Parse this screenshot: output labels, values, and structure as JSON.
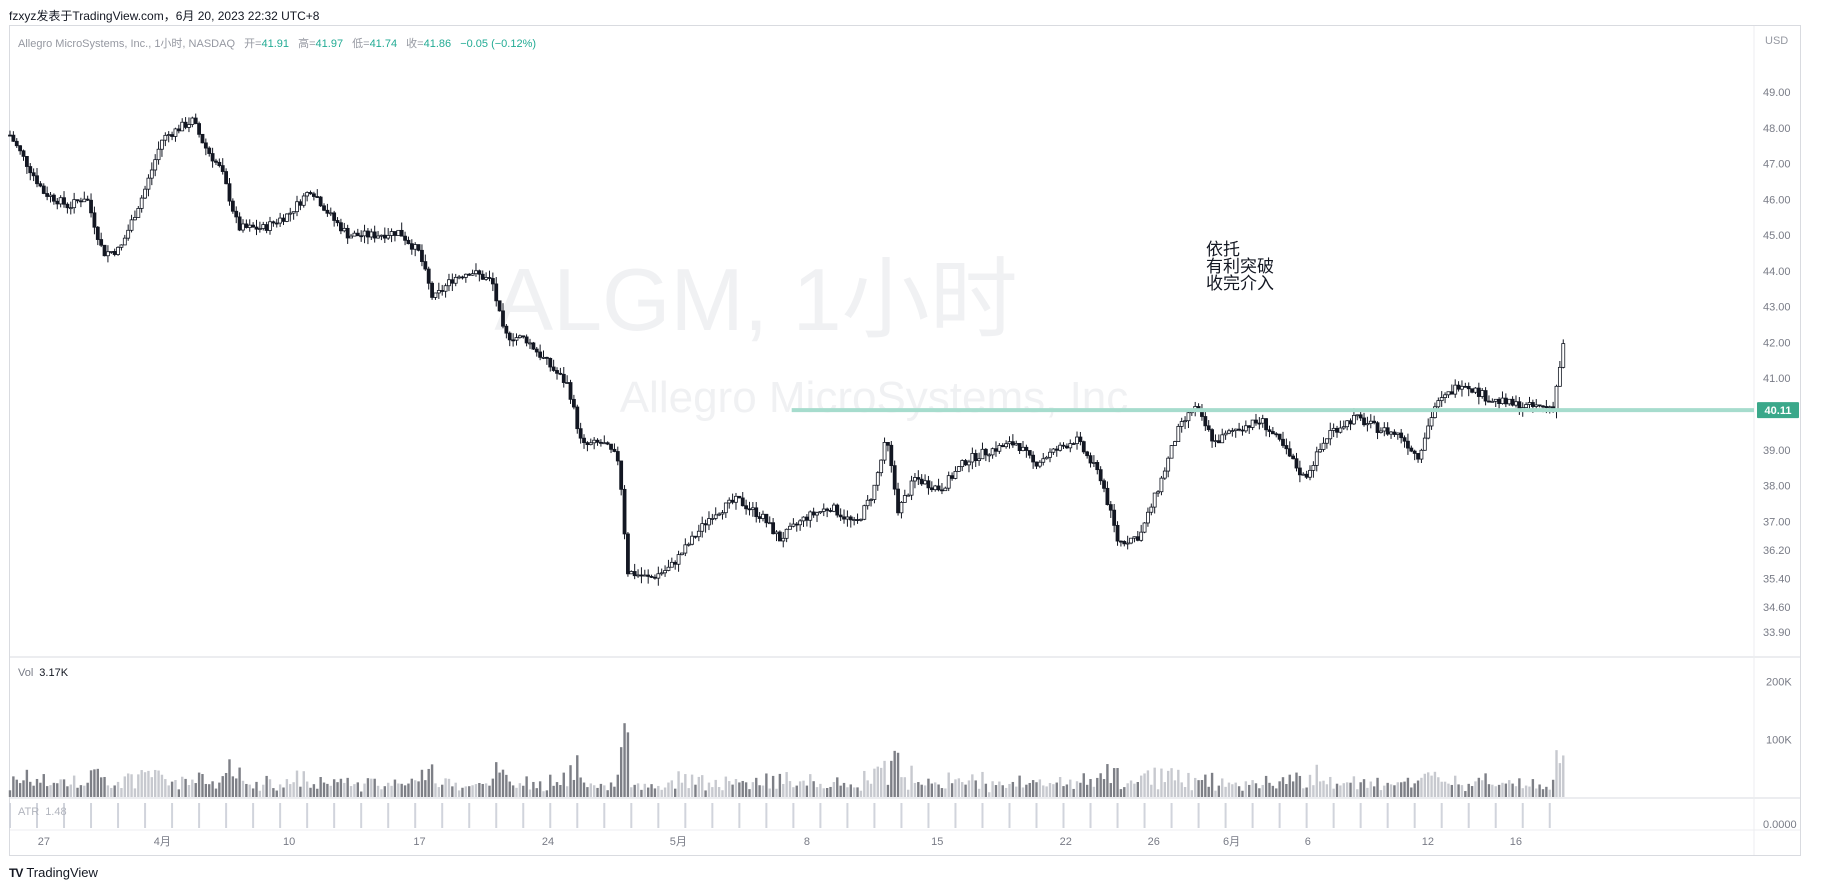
{
  "header": {
    "attribution": "fzxyz发表于TradingView.com，6月 20, 2023 22:32 UTC+8"
  },
  "legend": {
    "symbol": "Allegro MicroSystems, Inc., 1小时, NASDAQ",
    "open_label": "开=",
    "open": "41.91",
    "high_label": "高=",
    "high": "41.97",
    "low_label": "低=",
    "low": "41.74",
    "close_label": "收=",
    "close": "41.86",
    "change": "−0.05 (−0.12%)"
  },
  "currency": "USD",
  "watermark": {
    "title": "ALGM, 1小时",
    "subtitle": "Allegro MicroSystems, Inc"
  },
  "annotation": {
    "lines": [
      "依托",
      "有利突破",
      "收完介入"
    ]
  },
  "volume": {
    "label": "Vol",
    "value": "3.17K"
  },
  "atr": {
    "label": "ATR",
    "value": "1.48"
  },
  "footer": {
    "logo": "TV",
    "brand": "TradingView"
  },
  "colors": {
    "up": "#131722",
    "down": "#131722",
    "level_line": "#a6dccd",
    "level_badge": "#3aa88a",
    "vol_up": "#c7c9cf",
    "vol_down": "#7d7f86"
  },
  "chart_data": {
    "type": "candlestick",
    "price_ticks": [
      "49.00",
      "48.00",
      "47.00",
      "46.00",
      "45.00",
      "44.00",
      "43.00",
      "42.00",
      "41.00",
      "39.00",
      "38.00",
      "37.00",
      "36.20",
      "35.40",
      "34.60",
      "33.90"
    ],
    "price_ylim": [
      33.4,
      49.9
    ],
    "level": {
      "value": 40.11,
      "label": "40.11"
    },
    "x_ticks": [
      {
        "label": "27",
        "pos": 0.02
      },
      {
        "label": "4月",
        "pos": 0.09
      },
      {
        "label": "10",
        "pos": 0.165
      },
      {
        "label": "17",
        "pos": 0.242
      },
      {
        "label": "24",
        "pos": 0.318
      },
      {
        "label": "5月",
        "pos": 0.395
      },
      {
        "label": "8",
        "pos": 0.471
      },
      {
        "label": "15",
        "pos": 0.548
      },
      {
        "label": "22",
        "pos": 0.624
      },
      {
        "label": "26",
        "pos": 0.676
      },
      {
        "label": "6月",
        "pos": 0.722
      },
      {
        "label": "6",
        "pos": 0.767
      },
      {
        "label": "12",
        "pos": 0.838
      },
      {
        "label": "16",
        "pos": 0.89
      }
    ],
    "volume_ticks": [
      "200K",
      "100K"
    ],
    "volume_ylim": [
      0,
      220000
    ],
    "atr_ticks": [
      "0.0000"
    ],
    "price_path": [
      [
        0.0,
        47.8
      ],
      [
        0.02,
        46.2
      ],
      [
        0.035,
        45.8
      ],
      [
        0.045,
        46.1
      ],
      [
        0.055,
        44.5
      ],
      [
        0.065,
        44.6
      ],
      [
        0.08,
        46.3
      ],
      [
        0.09,
        47.7
      ],
      [
        0.1,
        48.0
      ],
      [
        0.108,
        48.2
      ],
      [
        0.115,
        47.5
      ],
      [
        0.125,
        46.8
      ],
      [
        0.135,
        45.2
      ],
      [
        0.15,
        45.2
      ],
      [
        0.165,
        45.6
      ],
      [
        0.178,
        46.3
      ],
      [
        0.19,
        45.5
      ],
      [
        0.2,
        45.0
      ],
      [
        0.215,
        45.0
      ],
      [
        0.23,
        45.1
      ],
      [
        0.242,
        44.5
      ],
      [
        0.25,
        43.2
      ],
      [
        0.262,
        43.8
      ],
      [
        0.272,
        44.0
      ],
      [
        0.285,
        43.7
      ],
      [
        0.292,
        42.2
      ],
      [
        0.305,
        42.1
      ],
      [
        0.318,
        41.4
      ],
      [
        0.33,
        40.8
      ],
      [
        0.338,
        39.1
      ],
      [
        0.35,
        39.2
      ],
      [
        0.36,
        38.7
      ],
      [
        0.365,
        35.6
      ],
      [
        0.378,
        35.4
      ],
      [
        0.39,
        35.7
      ],
      [
        0.4,
        36.3
      ],
      [
        0.415,
        37.2
      ],
      [
        0.43,
        37.6
      ],
      [
        0.445,
        37.1
      ],
      [
        0.455,
        36.5
      ],
      [
        0.47,
        37.1
      ],
      [
        0.485,
        37.4
      ],
      [
        0.5,
        36.9
      ],
      [
        0.51,
        37.8
      ],
      [
        0.518,
        39.3
      ],
      [
        0.525,
        37.3
      ],
      [
        0.535,
        38.2
      ],
      [
        0.55,
        37.9
      ],
      [
        0.565,
        38.7
      ],
      [
        0.58,
        39.0
      ],
      [
        0.595,
        39.2
      ],
      [
        0.605,
        38.6
      ],
      [
        0.615,
        38.9
      ],
      [
        0.63,
        39.3
      ],
      [
        0.645,
        38.2
      ],
      [
        0.655,
        36.4
      ],
      [
        0.668,
        36.6
      ],
      [
        0.68,
        38.1
      ],
      [
        0.69,
        39.5
      ],
      [
        0.7,
        40.2
      ],
      [
        0.712,
        39.2
      ],
      [
        0.725,
        39.6
      ],
      [
        0.74,
        39.8
      ],
      [
        0.752,
        39.1
      ],
      [
        0.765,
        38.2
      ],
      [
        0.78,
        39.5
      ],
      [
        0.795,
        39.9
      ],
      [
        0.808,
        39.6
      ],
      [
        0.822,
        39.4
      ],
      [
        0.832,
        38.8
      ],
      [
        0.842,
        40.2
      ],
      [
        0.858,
        40.9
      ],
      [
        0.875,
        40.4
      ],
      [
        0.895,
        40.2
      ],
      [
        0.912,
        40.2
      ],
      [
        0.918,
        41.9
      ]
    ]
  }
}
